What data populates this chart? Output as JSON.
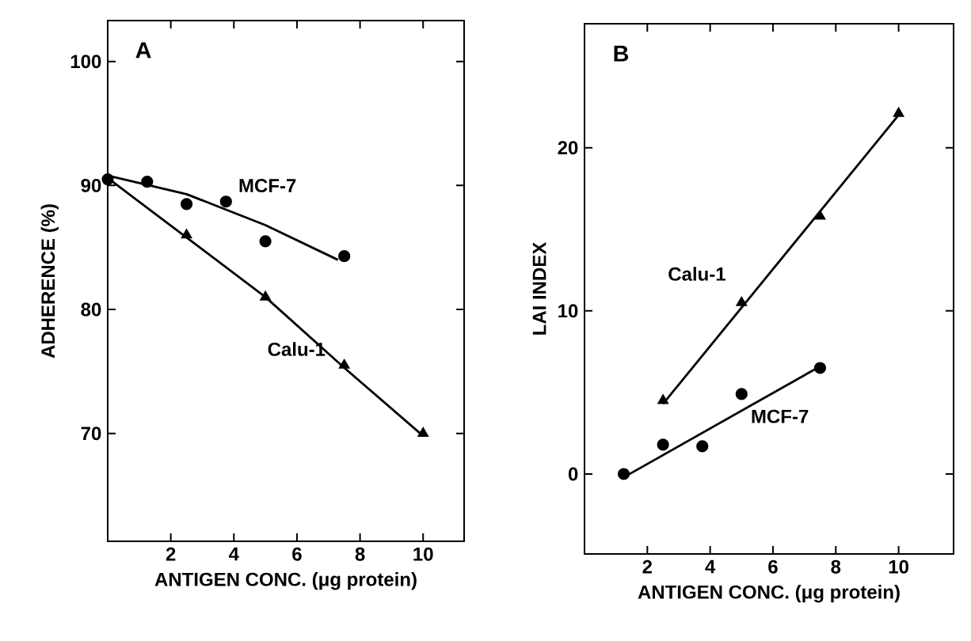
{
  "chart_data": [
    {
      "type": "scatter",
      "title": "A",
      "xlabel": "ANTIGEN CONC. (μg protein)",
      "ylabel": "ADHERENCE (%)",
      "xlim": [
        0,
        11.3
      ],
      "ylim": [
        61.3,
        103.3
      ],
      "xticks": [
        2,
        4,
        6,
        8,
        10
      ],
      "yticks": [
        70,
        80,
        90,
        100
      ],
      "series": [
        {
          "name": "MCF-7",
          "marker": "circle",
          "color": "#000000",
          "x": [
            0,
            1.25,
            2.5,
            3.75,
            5,
            7.5
          ],
          "values": [
            90.5,
            90.3,
            88.5,
            88.7,
            85.5,
            84.3
          ]
        },
        {
          "type": "line",
          "marker": "none",
          "color": "#000000",
          "x": [
            0,
            2.5,
            5,
            7.3
          ],
          "values": [
            90.8,
            89.3,
            86.8,
            84.0
          ]
        },
        {
          "name": "Calu-1",
          "marker": "triangle",
          "color": "#000000",
          "x": [
            2.5,
            5,
            7.5,
            10
          ],
          "values": [
            86,
            81,
            75.5,
            70
          ]
        },
        {
          "type": "line",
          "marker": "none",
          "color": "#000000",
          "x": [
            0,
            2.5,
            5,
            7.5,
            10
          ],
          "values": [
            90.6,
            85.8,
            81,
            75.3,
            69.8
          ]
        }
      ]
    },
    {
      "type": "scatter",
      "title": "B",
      "xlabel": "ANTIGEN CONC. (μg protein)",
      "ylabel": "LAI INDEX",
      "xlim": [
        0,
        11.75
      ],
      "ylim": [
        -4.9,
        27.6
      ],
      "xticks": [
        2,
        4,
        6,
        8,
        10
      ],
      "yticks": [
        0,
        10,
        20
      ],
      "series": [
        {
          "name": "MCF-7",
          "marker": "circle",
          "color": "#000000",
          "x": [
            1.25,
            2.5,
            3.75,
            5,
            7.5
          ],
          "values": [
            0,
            1.8,
            1.7,
            4.9,
            6.5
          ]
        },
        {
          "type": "line",
          "marker": "none",
          "color": "#000000",
          "x": [
            1.25,
            7.5
          ],
          "values": [
            -0.2,
            6.6
          ]
        },
        {
          "name": "Calu-1",
          "marker": "triangle",
          "color": "#000000",
          "x": [
            2.5,
            5,
            7.5,
            10
          ],
          "values": [
            4.5,
            10.5,
            15.8,
            22.1
          ]
        },
        {
          "type": "line",
          "marker": "none",
          "color": "#000000",
          "x": [
            2.5,
            10
          ],
          "values": [
            4.3,
            22
          ]
        }
      ]
    }
  ]
}
